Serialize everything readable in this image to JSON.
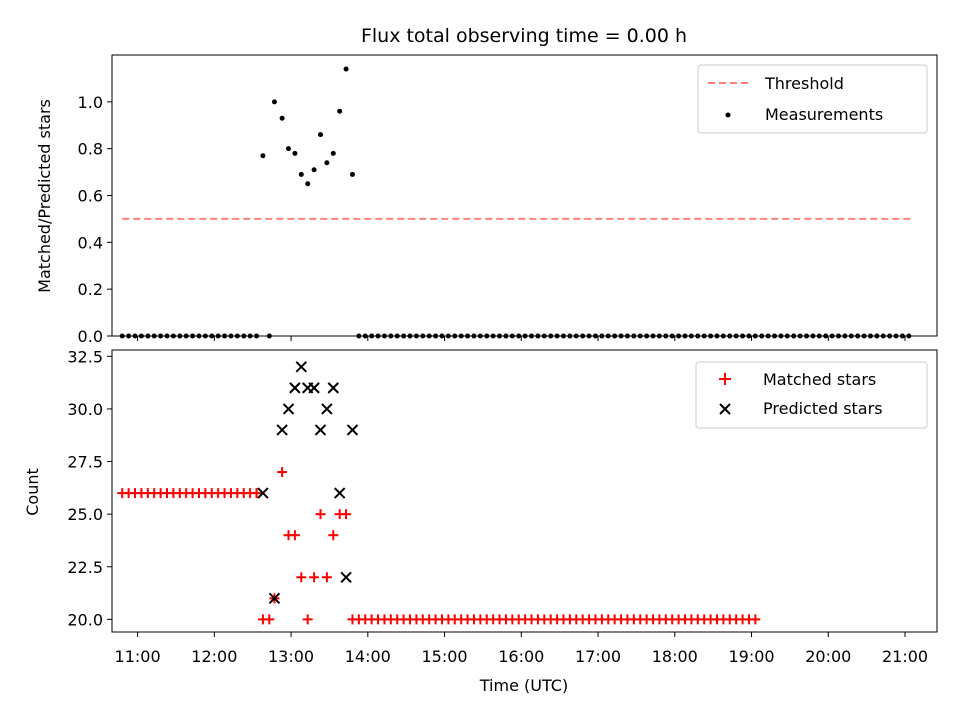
{
  "chart_data": [
    {
      "type": "scatter",
      "title": "Flux total observing time = 0.00 h",
      "xlabel": "",
      "ylabel": "Matched/Predicted stars",
      "xlim": [
        "10:40",
        "21:25"
      ],
      "ylim": [
        0,
        1.2
      ],
      "yticks": [
        0.0,
        0.2,
        0.4,
        0.6,
        0.8,
        1.0
      ],
      "ytick_labels": [
        "0.0",
        "0.2",
        "0.4",
        "0.6",
        "0.8",
        "1.0"
      ],
      "legend_position": "top-right",
      "series": [
        {
          "name": "Threshold",
          "style": "dashed-line",
          "color": "#ff7f7f",
          "x": [
            "10:48",
            "21:05"
          ],
          "y": [
            0.5,
            0.5
          ]
        },
        {
          "name": "Measurements",
          "style": "dot",
          "color": "#000000",
          "points": [
            [
              "10:48",
              0
            ],
            [
              "10:53",
              0
            ],
            [
              "10:58",
              0
            ],
            [
              "11:03",
              0
            ],
            [
              "11:08",
              0
            ],
            [
              "11:13",
              0
            ],
            [
              "11:18",
              0
            ],
            [
              "11:23",
              0
            ],
            [
              "11:28",
              0
            ],
            [
              "11:33",
              0
            ],
            [
              "11:38",
              0
            ],
            [
              "11:43",
              0
            ],
            [
              "11:48",
              0
            ],
            [
              "11:53",
              0
            ],
            [
              "11:58",
              0
            ],
            [
              "12:03",
              0
            ],
            [
              "12:08",
              0
            ],
            [
              "12:13",
              0
            ],
            [
              "12:18",
              0
            ],
            [
              "12:23",
              0
            ],
            [
              "12:28",
              0
            ],
            [
              "12:33",
              0
            ],
            [
              "12:38",
              0.77
            ],
            [
              "12:43",
              0
            ],
            [
              "12:47",
              1.0
            ],
            [
              "12:53",
              0.93
            ],
            [
              "12:58",
              0.8
            ],
            [
              "13:03",
              0.78
            ],
            [
              "13:08",
              0.69
            ],
            [
              "13:13",
              0.65
            ],
            [
              "13:18",
              0.71
            ],
            [
              "13:23",
              0.86
            ],
            [
              "13:28",
              0.74
            ],
            [
              "13:33",
              0.78
            ],
            [
              "13:38",
              0.96
            ],
            [
              "13:43",
              1.14
            ],
            [
              "13:48",
              0.69
            ],
            [
              "13:53",
              0
            ],
            [
              "13:58",
              0
            ],
            [
              "14:03",
              0
            ],
            [
              "14:08",
              0
            ],
            [
              "14:13",
              0
            ],
            [
              "14:18",
              0
            ],
            [
              "14:23",
              0
            ],
            [
              "14:28",
              0
            ],
            [
              "14:33",
              0
            ],
            [
              "14:38",
              0
            ],
            [
              "14:43",
              0
            ],
            [
              "14:48",
              0
            ],
            [
              "14:53",
              0
            ],
            [
              "14:58",
              0
            ],
            [
              "15:03",
              0
            ],
            [
              "15:08",
              0
            ],
            [
              "15:13",
              0
            ],
            [
              "15:18",
              0
            ],
            [
              "15:23",
              0
            ],
            [
              "15:28",
              0
            ],
            [
              "15:33",
              0
            ],
            [
              "15:38",
              0
            ],
            [
              "15:43",
              0
            ],
            [
              "15:48",
              0
            ],
            [
              "15:53",
              0
            ],
            [
              "15:58",
              0
            ],
            [
              "16:03",
              0
            ],
            [
              "16:08",
              0
            ],
            [
              "16:13",
              0
            ],
            [
              "16:18",
              0
            ],
            [
              "16:23",
              0
            ],
            [
              "16:28",
              0
            ],
            [
              "16:33",
              0
            ],
            [
              "16:38",
              0
            ],
            [
              "16:43",
              0
            ],
            [
              "16:48",
              0
            ],
            [
              "16:53",
              0
            ],
            [
              "16:58",
              0
            ],
            [
              "17:03",
              0
            ],
            [
              "17:08",
              0
            ],
            [
              "17:13",
              0
            ],
            [
              "17:18",
              0
            ],
            [
              "17:23",
              0
            ],
            [
              "17:28",
              0
            ],
            [
              "17:33",
              0
            ],
            [
              "17:38",
              0
            ],
            [
              "17:43",
              0
            ],
            [
              "17:48",
              0
            ],
            [
              "17:53",
              0
            ],
            [
              "17:58",
              0
            ],
            [
              "18:03",
              0
            ],
            [
              "18:08",
              0
            ],
            [
              "18:13",
              0
            ],
            [
              "18:18",
              0
            ],
            [
              "18:23",
              0
            ],
            [
              "18:28",
              0
            ],
            [
              "18:33",
              0
            ],
            [
              "18:38",
              0
            ],
            [
              "18:43",
              0
            ],
            [
              "18:48",
              0
            ],
            [
              "18:53",
              0
            ],
            [
              "18:58",
              0
            ],
            [
              "19:03",
              0
            ],
            [
              "19:08",
              0
            ],
            [
              "19:13",
              0
            ],
            [
              "19:18",
              0
            ],
            [
              "19:23",
              0
            ],
            [
              "19:28",
              0
            ],
            [
              "19:33",
              0
            ],
            [
              "19:38",
              0
            ],
            [
              "19:43",
              0
            ],
            [
              "19:48",
              0
            ],
            [
              "19:53",
              0
            ],
            [
              "19:58",
              0
            ],
            [
              "20:03",
              0
            ],
            [
              "20:08",
              0
            ],
            [
              "20:13",
              0
            ],
            [
              "20:18",
              0
            ],
            [
              "20:23",
              0
            ],
            [
              "20:28",
              0
            ],
            [
              "20:33",
              0
            ],
            [
              "20:38",
              0
            ],
            [
              "20:43",
              0
            ],
            [
              "20:48",
              0
            ],
            [
              "20:53",
              0
            ],
            [
              "20:58",
              0
            ],
            [
              "21:03",
              0
            ]
          ]
        }
      ]
    },
    {
      "type": "scatter",
      "title": "",
      "xlabel": "Time (UTC)",
      "ylabel": "Count",
      "xlim": [
        "10:40",
        "21:25"
      ],
      "ylim": [
        19.4,
        32.8
      ],
      "xticks": [
        "11:00",
        "12:00",
        "13:00",
        "14:00",
        "15:00",
        "16:00",
        "17:00",
        "18:00",
        "19:00",
        "20:00",
        "21:00"
      ],
      "yticks": [
        20.0,
        22.5,
        25.0,
        27.5,
        30.0,
        32.5
      ],
      "ytick_labels": [
        "20.0",
        "22.5",
        "25.0",
        "27.5",
        "30.0",
        "32.5"
      ],
      "legend_position": "top-right",
      "series": [
        {
          "name": "Matched stars",
          "marker": "plus",
          "color": "#ff0000",
          "regular": {
            "start": "10:48",
            "step_min": 5,
            "count": 22,
            "y": 26
          },
          "regular_tail": {
            "start": "13:48",
            "step_min": 5,
            "count": 64,
            "y": 20
          },
          "points": [
            [
              "12:38",
              20
            ],
            [
              "12:43",
              20
            ],
            [
              "12:47",
              21
            ],
            [
              "12:53",
              27
            ],
            [
              "12:58",
              24
            ],
            [
              "13:03",
              24
            ],
            [
              "13:08",
              22
            ],
            [
              "13:13",
              20
            ],
            [
              "13:18",
              22
            ],
            [
              "13:23",
              25
            ],
            [
              "13:28",
              22
            ],
            [
              "13:33",
              24
            ],
            [
              "13:38",
              25
            ],
            [
              "13:43",
              25
            ]
          ]
        },
        {
          "name": "Predicted stars",
          "marker": "x",
          "color": "#000000",
          "points": [
            [
              "12:38",
              26
            ],
            [
              "12:47",
              21
            ],
            [
              "12:53",
              29
            ],
            [
              "12:58",
              30
            ],
            [
              "13:03",
              31
            ],
            [
              "13:08",
              32
            ],
            [
              "13:13",
              31
            ],
            [
              "13:18",
              31
            ],
            [
              "13:23",
              29
            ],
            [
              "13:28",
              30
            ],
            [
              "13:33",
              31
            ],
            [
              "13:38",
              26
            ],
            [
              "13:43",
              22
            ],
            [
              "13:48",
              29
            ]
          ]
        }
      ]
    }
  ]
}
